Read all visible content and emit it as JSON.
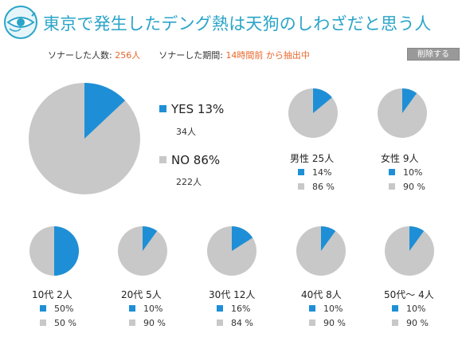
{
  "header": {
    "title": "東京で発生したデング熱は天狗のしわざだと思う人",
    "respondents_label": "ソナーした人数:",
    "respondents_value": "256人",
    "period_label": "ソナーした期間:",
    "period_value": "14時間前 から抽出中",
    "delete_button": "削除する"
  },
  "colors": {
    "yes": "#1e8fd6",
    "no": "#c8c8c8",
    "title": "#2aa4c8",
    "accent": "#e8662a"
  },
  "logo_icon": "tengu-eye-logo-icon",
  "chart_data": [
    {
      "type": "pie",
      "id": "overall",
      "slices": [
        {
          "label": "YES",
          "value": 13,
          "count": "34人",
          "color": "#1e8fd6",
          "text": "YES 13%"
        },
        {
          "label": "NO",
          "value": 86,
          "count": "222人",
          "color": "#c8c8c8",
          "text": "NO 86%"
        }
      ]
    },
    {
      "type": "pie",
      "id": "male",
      "group": "男性 25人",
      "yes": 14,
      "no": 86,
      "yes_text": "14%",
      "no_text": "86 %"
    },
    {
      "type": "pie",
      "id": "female",
      "group": "女性 9人",
      "yes": 10,
      "no": 90,
      "yes_text": "10%",
      "no_text": "90 %"
    },
    {
      "type": "pie",
      "id": "age10",
      "group": "10代 2人",
      "yes": 50,
      "no": 50,
      "yes_text": "50%",
      "no_text": "50 %"
    },
    {
      "type": "pie",
      "id": "age20",
      "group": "20代 5人",
      "yes": 10,
      "no": 90,
      "yes_text": "10%",
      "no_text": "90 %"
    },
    {
      "type": "pie",
      "id": "age30",
      "group": "30代 12人",
      "yes": 16,
      "no": 84,
      "yes_text": "16%",
      "no_text": "84 %"
    },
    {
      "type": "pie",
      "id": "age40",
      "group": "40代 8人",
      "yes": 10,
      "no": 90,
      "yes_text": "10%",
      "no_text": "90 %"
    },
    {
      "type": "pie",
      "id": "age50",
      "group": "50代～ 4人",
      "yes": 10,
      "no": 90,
      "yes_text": "10%",
      "no_text": "90 %"
    }
  ]
}
